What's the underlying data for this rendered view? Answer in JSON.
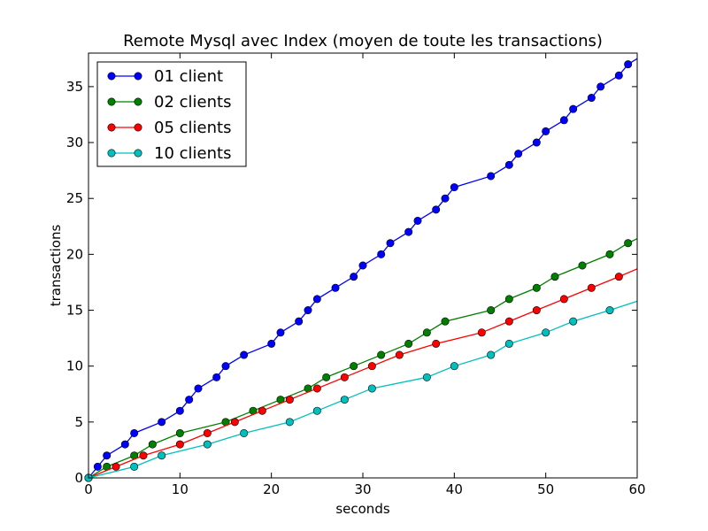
{
  "chart_data": {
    "type": "line",
    "title": "Remote Mysql avec Index (moyen de toute les transactions)",
    "xlabel": "seconds",
    "ylabel": "transactions",
    "xlim": [
      0,
      60
    ],
    "ylim": [
      0,
      38
    ],
    "xticks": [
      0,
      10,
      20,
      30,
      40,
      50,
      60
    ],
    "yticks": [
      0,
      5,
      10,
      15,
      20,
      25,
      30,
      35
    ],
    "grid": false,
    "legend_position": "top-left",
    "series": [
      {
        "name": "01 client",
        "color": "#0000ff",
        "marker_color": "#0000ff",
        "points": [
          [
            0,
            0
          ],
          [
            1,
            1
          ],
          [
            2,
            2
          ],
          [
            4,
            3
          ],
          [
            5,
            4
          ],
          [
            8,
            5
          ],
          [
            10,
            6
          ],
          [
            11,
            7
          ],
          [
            12,
            8
          ],
          [
            14,
            9
          ],
          [
            15,
            10
          ],
          [
            17,
            11
          ],
          [
            20,
            12
          ],
          [
            21,
            13
          ],
          [
            23,
            14
          ],
          [
            24,
            15
          ],
          [
            25,
            16
          ],
          [
            27,
            17
          ],
          [
            29,
            18
          ],
          [
            30,
            19
          ],
          [
            32,
            20
          ],
          [
            33,
            21
          ],
          [
            35,
            22
          ],
          [
            36,
            23
          ],
          [
            38,
            24
          ],
          [
            39,
            25
          ],
          [
            40,
            26
          ],
          [
            44,
            27
          ],
          [
            46,
            28
          ],
          [
            47,
            29
          ],
          [
            49,
            30
          ],
          [
            50,
            31
          ],
          [
            52,
            32
          ],
          [
            53,
            33
          ],
          [
            55,
            34
          ],
          [
            56,
            35
          ],
          [
            58,
            36
          ],
          [
            59,
            37
          ],
          [
            60,
            37.5
          ]
        ]
      },
      {
        "name": "02 clients",
        "color": "#008000",
        "marker_color": "#008000",
        "points": [
          [
            0,
            0
          ],
          [
            2,
            1
          ],
          [
            5,
            2
          ],
          [
            7,
            3
          ],
          [
            10,
            4
          ],
          [
            15,
            5
          ],
          [
            18,
            6
          ],
          [
            21,
            7
          ],
          [
            24,
            8
          ],
          [
            26,
            9
          ],
          [
            29,
            10
          ],
          [
            32,
            11
          ],
          [
            35,
            12
          ],
          [
            37,
            13
          ],
          [
            39,
            14
          ],
          [
            44,
            15
          ],
          [
            46,
            16
          ],
          [
            49,
            17
          ],
          [
            51,
            18
          ],
          [
            54,
            19
          ],
          [
            57,
            20
          ],
          [
            59,
            21
          ],
          [
            60,
            21.4
          ]
        ]
      },
      {
        "name": "05 clients",
        "color": "#ff0000",
        "marker_color": "#ff0000",
        "points": [
          [
            0,
            0
          ],
          [
            3,
            1
          ],
          [
            6,
            2
          ],
          [
            10,
            3
          ],
          [
            13,
            4
          ],
          [
            16,
            5
          ],
          [
            19,
            6
          ],
          [
            22,
            7
          ],
          [
            25,
            8
          ],
          [
            28,
            9
          ],
          [
            31,
            10
          ],
          [
            34,
            11
          ],
          [
            38,
            12
          ],
          [
            43,
            13
          ],
          [
            46,
            14
          ],
          [
            49,
            15
          ],
          [
            52,
            16
          ],
          [
            55,
            17
          ],
          [
            58,
            18
          ],
          [
            60,
            18.7
          ]
        ]
      },
      {
        "name": "10 clients",
        "color": "#00bfbf",
        "marker_color": "#00bfbf",
        "points": [
          [
            0,
            0
          ],
          [
            5,
            1
          ],
          [
            8,
            2
          ],
          [
            13,
            3
          ],
          [
            17,
            4
          ],
          [
            22,
            5
          ],
          [
            25,
            6
          ],
          [
            28,
            7
          ],
          [
            31,
            8
          ],
          [
            37,
            9
          ],
          [
            40,
            10
          ],
          [
            44,
            11
          ],
          [
            46,
            12
          ],
          [
            50,
            13
          ],
          [
            53,
            14
          ],
          [
            57,
            15
          ],
          [
            60,
            15.8
          ]
        ]
      }
    ]
  }
}
